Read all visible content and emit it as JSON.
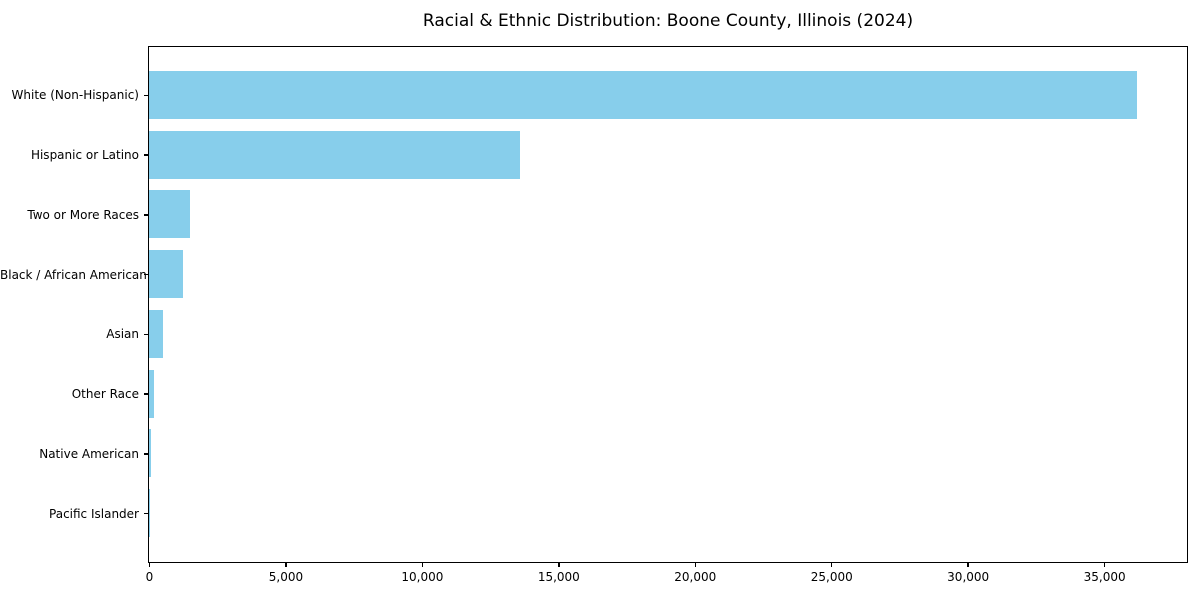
{
  "figure": {
    "background": "#ffffff"
  },
  "chart_data": {
    "type": "bar",
    "orientation": "horizontal",
    "title": "Racial & Ethnic Distribution: Boone County, Illinois (2024)",
    "categories": [
      "White (Non-Hispanic)",
      "Hispanic or Latino",
      "Two or More Races",
      "Black / African American",
      "Asian",
      "Other Race",
      "Native American",
      "Pacific Islander"
    ],
    "values": [
      36200,
      13600,
      1500,
      1250,
      500,
      200,
      60,
      20
    ],
    "xlabel": "",
    "ylabel": "",
    "xlim": [
      0,
      38000
    ],
    "x_ticks": [
      0,
      5000,
      10000,
      15000,
      20000,
      25000,
      30000,
      35000
    ],
    "x_tick_labels": [
      "0",
      "5,000",
      "10,000",
      "15,000",
      "20,000",
      "25,000",
      "30,000",
      "35,000"
    ],
    "bar_color": "#87CEEB",
    "axis_color": "#000000",
    "text_color": "#000000",
    "grid": false,
    "legend": false
  }
}
